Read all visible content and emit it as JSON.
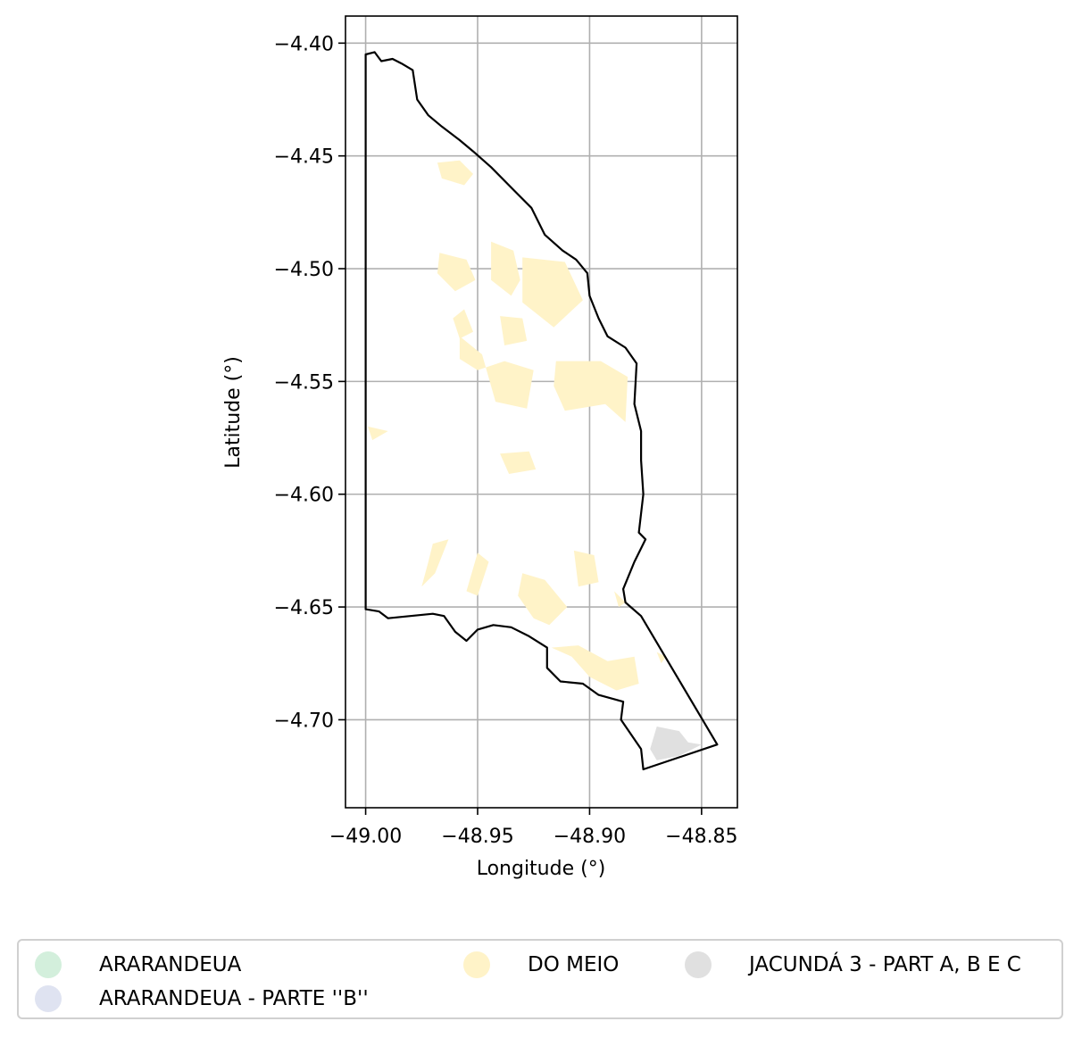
{
  "chart_data": {
    "type": "map",
    "xlabel": "Longitude (°)",
    "ylabel": "Latitude (°)",
    "xlim": [
      -49.009,
      -48.834
    ],
    "ylim": [
      -4.739,
      -4.388
    ],
    "xticks": [
      -49.0,
      -48.95,
      -48.9,
      -48.85
    ],
    "xtick_labels": [
      "−49.00",
      "−48.95",
      "−48.90",
      "−48.85"
    ],
    "yticks": [
      -4.4,
      -4.45,
      -4.5,
      -4.55,
      -4.6,
      -4.65,
      -4.7
    ],
    "ytick_labels": [
      "−4.40",
      "−4.45",
      "−4.50",
      "−4.55",
      "−4.60",
      "−4.65",
      "−4.70"
    ],
    "grid": true,
    "legend_position": "bottom",
    "boundary": [
      [
        -49.0,
        -4.405
      ],
      [
        -48.996,
        -4.404
      ],
      [
        -48.993,
        -4.408
      ],
      [
        -48.988,
        -4.407
      ],
      [
        -48.984,
        -4.409
      ],
      [
        -48.979,
        -4.412
      ],
      [
        -48.977,
        -4.425
      ],
      [
        -48.972,
        -4.432
      ],
      [
        -48.966,
        -4.437
      ],
      [
        -48.958,
        -4.443
      ],
      [
        -48.952,
        -4.448
      ],
      [
        -48.944,
        -4.455
      ],
      [
        -48.934,
        -4.465
      ],
      [
        -48.926,
        -4.473
      ],
      [
        -48.92,
        -4.485
      ],
      [
        -48.912,
        -4.492
      ],
      [
        -48.906,
        -4.496
      ],
      [
        -48.901,
        -4.502
      ],
      [
        -48.9,
        -4.512
      ],
      [
        -48.896,
        -4.522
      ],
      [
        -48.892,
        -4.53
      ],
      [
        -48.884,
        -4.535
      ],
      [
        -48.879,
        -4.542
      ],
      [
        -48.88,
        -4.56
      ],
      [
        -48.877,
        -4.572
      ],
      [
        -48.877,
        -4.585
      ],
      [
        -48.876,
        -4.6
      ],
      [
        -48.878,
        -4.617
      ],
      [
        -48.875,
        -4.62
      ],
      [
        -48.88,
        -4.63
      ],
      [
        -48.885,
        -4.642
      ],
      [
        -48.884,
        -4.648
      ],
      [
        -48.877,
        -4.654
      ],
      [
        -48.843,
        -4.711
      ],
      [
        -48.876,
        -4.722
      ],
      [
        -48.877,
        -4.713
      ],
      [
        -48.886,
        -4.7
      ],
      [
        -48.885,
        -4.692
      ],
      [
        -48.896,
        -4.689
      ],
      [
        -48.903,
        -4.684
      ],
      [
        -48.913,
        -4.683
      ],
      [
        -48.919,
        -4.677
      ],
      [
        -48.919,
        -4.668
      ],
      [
        -48.927,
        -4.663
      ],
      [
        -48.935,
        -4.659
      ],
      [
        -48.943,
        -4.658
      ],
      [
        -48.95,
        -4.66
      ],
      [
        -48.955,
        -4.665
      ],
      [
        -48.96,
        -4.661
      ],
      [
        -48.965,
        -4.654
      ],
      [
        -48.97,
        -4.653
      ],
      [
        -48.98,
        -4.654
      ],
      [
        -48.99,
        -4.655
      ],
      [
        -48.994,
        -4.652
      ],
      [
        -49.0,
        -4.651
      ],
      [
        -49.0,
        -4.405
      ]
    ],
    "series": [
      {
        "name": "ARARANDEUA",
        "color": "#d3efdc",
        "polygons": []
      },
      {
        "name": "ARARANDEUA - PARTE ''B''",
        "color": "#dfe3f1",
        "polygons": []
      },
      {
        "name": "DO MEIO",
        "color": "#fff3c8",
        "polygons": [
          [
            [
              -48.968,
              -4.453
            ],
            [
              -48.958,
              -4.452
            ],
            [
              -48.952,
              -4.458
            ],
            [
              -48.956,
              -4.463
            ],
            [
              -48.966,
              -4.46
            ]
          ],
          [
            [
              -48.967,
              -4.493
            ],
            [
              -48.955,
              -4.496
            ],
            [
              -48.951,
              -4.505
            ],
            [
              -48.96,
              -4.51
            ],
            [
              -48.968,
              -4.502
            ]
          ],
          [
            [
              -48.944,
              -4.488
            ],
            [
              -48.934,
              -4.492
            ],
            [
              -48.931,
              -4.505
            ],
            [
              -48.935,
              -4.512
            ],
            [
              -48.944,
              -4.505
            ]
          ],
          [
            [
              -48.93,
              -4.495
            ],
            [
              -48.911,
              -4.497
            ],
            [
              -48.903,
              -4.514
            ],
            [
              -48.916,
              -4.526
            ],
            [
              -48.93,
              -4.515
            ]
          ],
          [
            [
              -48.958,
              -4.53
            ],
            [
              -48.948,
              -4.538
            ],
            [
              -48.942,
              -4.559
            ],
            [
              -48.928,
              -4.562
            ],
            [
              -48.925,
              -4.545
            ],
            [
              -48.938,
              -4.541
            ],
            [
              -48.95,
              -4.545
            ],
            [
              -48.958,
              -4.54
            ]
          ],
          [
            [
              -48.956,
              -4.518
            ],
            [
              -48.952,
              -4.528
            ],
            [
              -48.958,
              -4.531
            ],
            [
              -48.961,
              -4.522
            ]
          ],
          [
            [
              -48.94,
              -4.521
            ],
            [
              -48.93,
              -4.522
            ],
            [
              -48.928,
              -4.532
            ],
            [
              -48.938,
              -4.534
            ]
          ],
          [
            [
              -48.915,
              -4.541
            ],
            [
              -48.895,
              -4.541
            ],
            [
              -48.883,
              -4.548
            ],
            [
              -48.884,
              -4.568
            ],
            [
              -48.893,
              -4.56
            ],
            [
              -48.911,
              -4.563
            ],
            [
              -48.916,
              -4.552
            ]
          ],
          [
            [
              -48.94,
              -4.582
            ],
            [
              -48.927,
              -4.581
            ],
            [
              -48.924,
              -4.589
            ],
            [
              -48.936,
              -4.591
            ]
          ],
          [
            [
              -48.999,
              -4.57
            ],
            [
              -48.99,
              -4.572
            ],
            [
              -48.997,
              -4.576
            ]
          ],
          [
            [
              -48.97,
              -4.622
            ],
            [
              -48.963,
              -4.62
            ],
            [
              -48.969,
              -4.635
            ],
            [
              -48.975,
              -4.641
            ],
            [
              -48.972,
              -4.63
            ]
          ],
          [
            [
              -48.95,
              -4.626
            ],
            [
              -48.945,
              -4.63
            ],
            [
              -48.95,
              -4.645
            ],
            [
              -48.955,
              -4.643
            ]
          ],
          [
            [
              -48.907,
              -4.625
            ],
            [
              -48.898,
              -4.627
            ],
            [
              -48.896,
              -4.639
            ],
            [
              -48.905,
              -4.641
            ]
          ],
          [
            [
              -48.93,
              -4.635
            ],
            [
              -48.92,
              -4.638
            ],
            [
              -48.91,
              -4.65
            ],
            [
              -48.918,
              -4.658
            ],
            [
              -48.925,
              -4.655
            ],
            [
              -48.932,
              -4.645
            ]
          ],
          [
            [
              -48.917,
              -4.668
            ],
            [
              -48.908,
              -4.672
            ],
            [
              -48.9,
              -4.681
            ],
            [
              -48.888,
              -4.687
            ],
            [
              -48.878,
              -4.684
            ],
            [
              -48.88,
              -4.672
            ],
            [
              -48.892,
              -4.674
            ],
            [
              -48.905,
              -4.667
            ]
          ],
          [
            [
              -48.87,
              -4.67
            ],
            [
              -48.866,
              -4.672
            ],
            [
              -48.868,
              -4.675
            ]
          ],
          [
            [
              -48.889,
              -4.643
            ],
            [
              -48.884,
              -4.648
            ],
            [
              -48.887,
              -4.65
            ]
          ]
        ]
      },
      {
        "name": "JACUNDÁ 3 - PART A, B E C",
        "color": "#e0e0e0",
        "polygons": [
          [
            [
              -48.87,
              -4.703
            ],
            [
              -48.86,
              -4.705
            ],
            [
              -48.856,
              -4.71
            ],
            [
              -48.85,
              -4.711
            ],
            [
              -48.86,
              -4.716
            ],
            [
              -48.87,
              -4.718
            ],
            [
              -48.873,
              -4.713
            ]
          ]
        ]
      }
    ]
  }
}
